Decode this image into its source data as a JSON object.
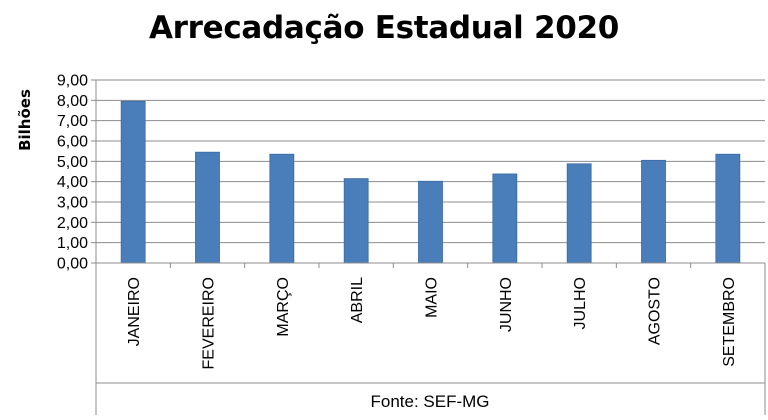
{
  "chart_data": {
    "type": "bar",
    "title": "Arrecadação Estadual 2020",
    "ylabel": "Bilhões",
    "xlabel": "",
    "categories": [
      "JANEIRO",
      "FEVEREIRO",
      "MARÇO",
      "ABRIL",
      "MAIO",
      "JUNHO",
      "JULHO",
      "AGOSTO",
      "SETEMBRO"
    ],
    "values": [
      7.95,
      5.45,
      5.35,
      4.15,
      4.02,
      4.38,
      4.88,
      5.05,
      5.35
    ],
    "ylim": [
      0,
      9
    ],
    "yticks": [
      "0,00",
      "1,00",
      "2,00",
      "3,00",
      "4,00",
      "5,00",
      "6,00",
      "7,00",
      "8,00",
      "9,00"
    ],
    "grid": true,
    "bar_color": "#4a7ebb",
    "source": "Fonte: SEF-MG"
  }
}
